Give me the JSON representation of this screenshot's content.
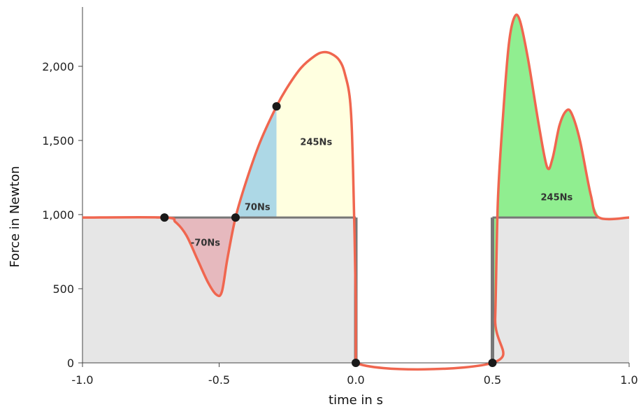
{
  "chart_data": {
    "type": "area",
    "xlabel": "time in s",
    "ylabel": "Force in Newton",
    "xlim": [
      -1.0,
      1.0
    ],
    "ylim": [
      0,
      2400
    ],
    "x_ticks": [
      -1.0,
      -0.5,
      0.0,
      0.5,
      1.0
    ],
    "x_tick_labels": [
      "-1.0",
      "-0.5",
      "0.0",
      "0.5",
      "1.0"
    ],
    "y_ticks": [
      0,
      500,
      1000,
      1500,
      2000
    ],
    "y_tick_labels": [
      "0",
      "500",
      "1,000",
      "1,500",
      "2,000"
    ],
    "body_weight": 980,
    "series": [
      {
        "points": [
          [
            -1.0,
            980
          ],
          [
            -0.7,
            980
          ],
          [
            -0.66,
            950
          ],
          [
            -0.62,
            860
          ],
          [
            -0.58,
            700
          ],
          [
            -0.54,
            540
          ],
          [
            -0.51,
            460
          ],
          [
            -0.49,
            480
          ],
          [
            -0.47,
            700
          ],
          [
            -0.44,
            980
          ],
          [
            -0.4,
            1230
          ],
          [
            -0.35,
            1490
          ],
          [
            -0.29,
            1730
          ],
          [
            -0.25,
            1860
          ],
          [
            -0.2,
            1990
          ],
          [
            -0.15,
            2070
          ],
          [
            -0.12,
            2095
          ],
          [
            -0.09,
            2085
          ],
          [
            -0.06,
            2040
          ],
          [
            -0.04,
            1950
          ],
          [
            -0.02,
            1750
          ],
          [
            -0.01,
            1300
          ],
          [
            0.0,
            400
          ],
          [
            0.0,
            0
          ],
          [
            0.5,
            0
          ],
          [
            0.51,
            300
          ],
          [
            0.52,
            1100
          ],
          [
            0.54,
            1700
          ],
          [
            0.56,
            2150
          ],
          [
            0.58,
            2330
          ],
          [
            0.6,
            2310
          ],
          [
            0.63,
            2050
          ],
          [
            0.67,
            1600
          ],
          [
            0.7,
            1320
          ],
          [
            0.72,
            1380
          ],
          [
            0.745,
            1600
          ],
          [
            0.77,
            1700
          ],
          [
            0.79,
            1680
          ],
          [
            0.82,
            1500
          ],
          [
            0.86,
            1130
          ],
          [
            0.89,
            980
          ],
          [
            1.0,
            980
          ]
        ]
      }
    ],
    "regions": [
      {
        "label": "-70Ns",
        "x_range": [
          -0.7,
          -0.44
        ],
        "color": "#e6b9be"
      },
      {
        "label": "70Ns",
        "x_range": [
          -0.44,
          -0.29
        ],
        "color": "#add8e6"
      },
      {
        "label": "245Ns",
        "x_range": [
          -0.29,
          0.0
        ],
        "color": "#ffffe0"
      },
      {
        "label": "245Ns",
        "x_range": [
          0.5,
          0.89
        ],
        "color": "#90ee90"
      }
    ],
    "markers": [
      [
        -0.7,
        980
      ],
      [
        -0.44,
        980
      ],
      [
        -0.29,
        1730
      ],
      [
        0.0,
        0
      ],
      [
        0.5,
        0
      ]
    ],
    "colors": {
      "curve": "#f0664f",
      "background_fill": "#e6e6e6",
      "baseline": "#777777",
      "marker": "#1a1a1a"
    }
  }
}
